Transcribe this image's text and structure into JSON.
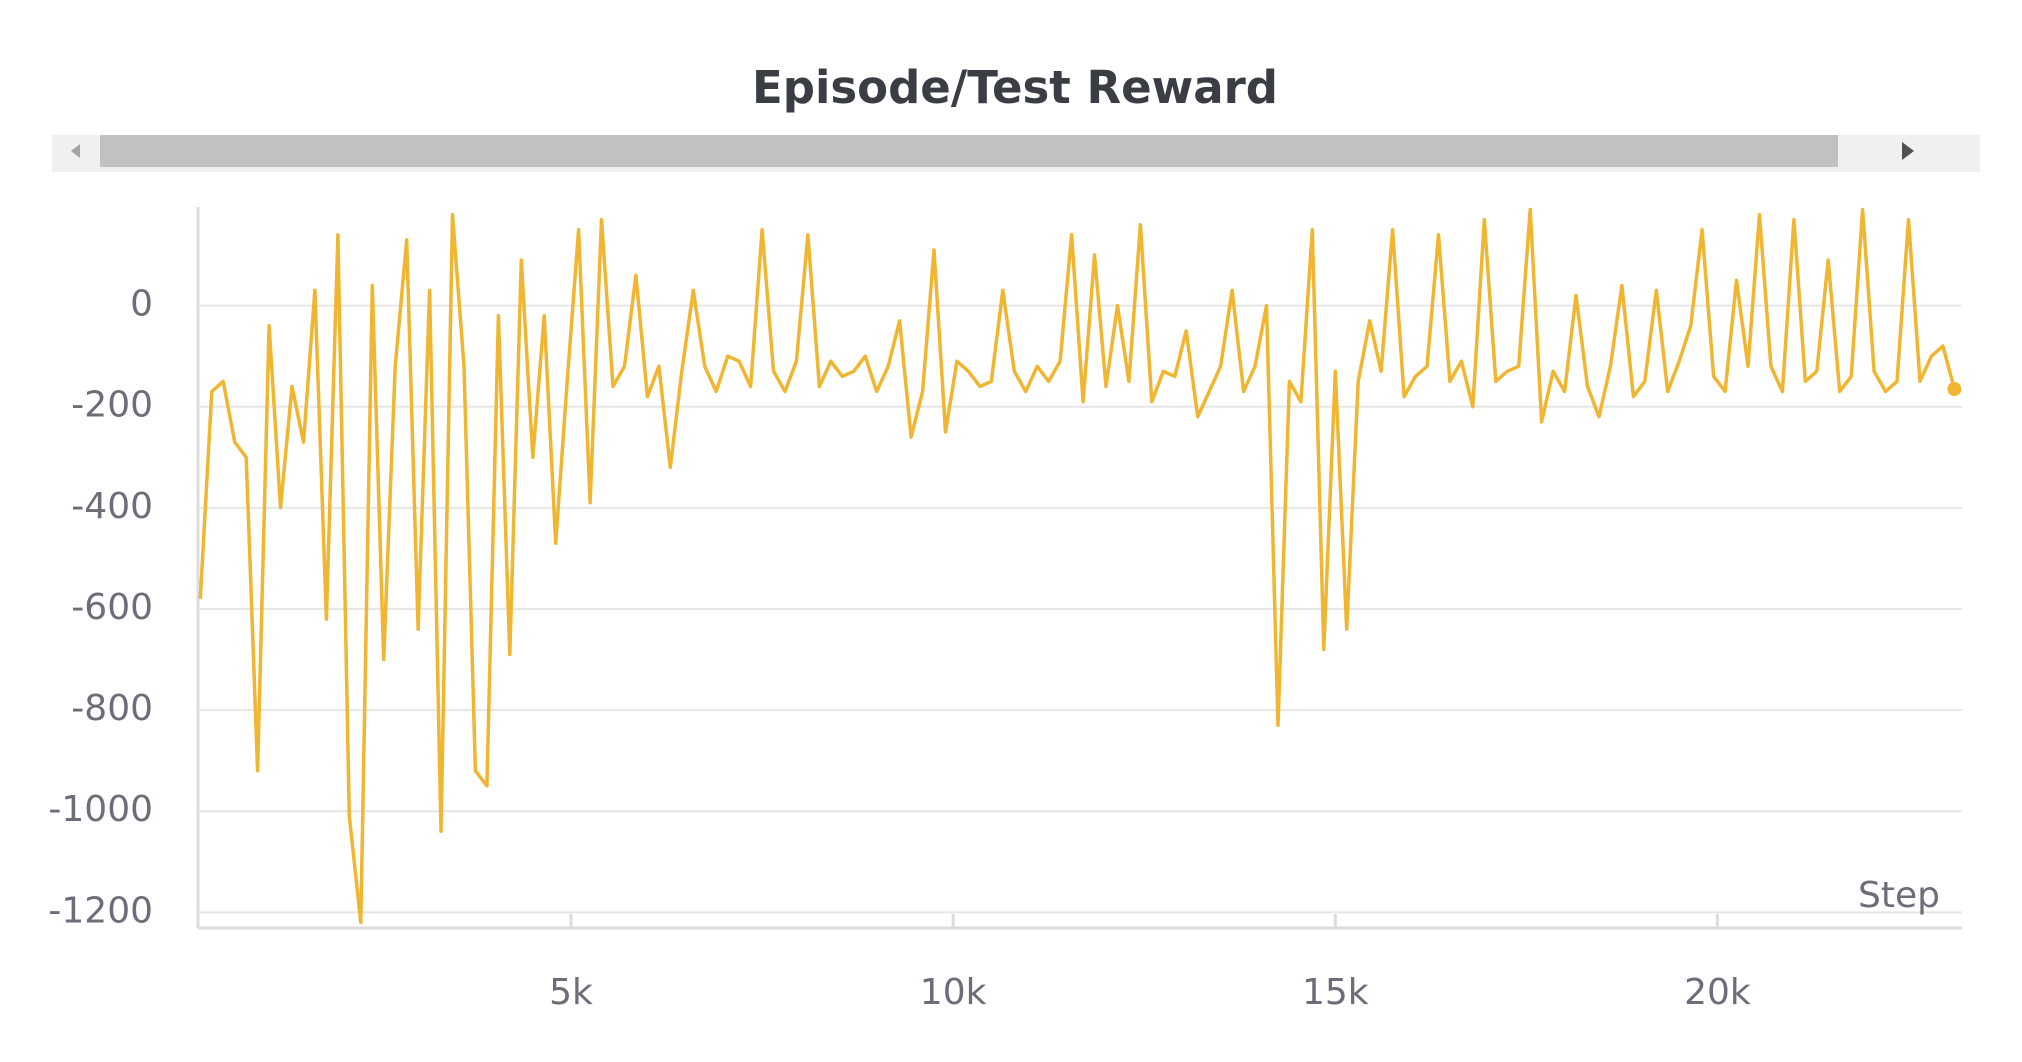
{
  "chart_data": {
    "type": "line",
    "title": "Episode/Test Reward",
    "x_label": "Step",
    "xlim": [
      120,
      23200
    ],
    "ylim": [
      -1231,
      195
    ],
    "xticks": [
      {
        "value": 5000,
        "label": "5k"
      },
      {
        "value": 10000,
        "label": "10k"
      },
      {
        "value": 15000,
        "label": "15k"
      },
      {
        "value": 20000,
        "label": "20k"
      }
    ],
    "yticks": [
      0,
      -200,
      -400,
      -600,
      -800,
      -1000,
      -1200
    ],
    "grid": true,
    "x": [
      150,
      300,
      450,
      600,
      750,
      900,
      1050,
      1200,
      1350,
      1500,
      1650,
      1800,
      1950,
      2100,
      2250,
      2400,
      2550,
      2700,
      2850,
      3000,
      3150,
      3300,
      3450,
      3600,
      3750,
      3900,
      4050,
      4200,
      4350,
      4500,
      4650,
      4800,
      4950,
      5100,
      5250,
      5400,
      5550,
      5700,
      5850,
      6000,
      6150,
      6300,
      6450,
      6600,
      6750,
      6900,
      7050,
      7200,
      7350,
      7500,
      7650,
      7800,
      7950,
      8100,
      8250,
      8400,
      8550,
      8700,
      8850,
      9000,
      9150,
      9300,
      9450,
      9600,
      9750,
      9900,
      10050,
      10200,
      10350,
      10500,
      10650,
      10800,
      10950,
      11100,
      11250,
      11400,
      11550,
      11700,
      11850,
      12000,
      12150,
      12300,
      12450,
      12600,
      12750,
      12900,
      13050,
      13200,
      13350,
      13500,
      13650,
      13800,
      13950,
      14100,
      14250,
      14400,
      14550,
      14700,
      14850,
      15000,
      15150,
      15300,
      15450,
      15600,
      15750,
      15900,
      16050,
      16200,
      16350,
      16500,
      16650,
      16800,
      16950,
      17100,
      17250,
      17400,
      17550,
      17700,
      17850,
      18000,
      18150,
      18300,
      18450,
      18600,
      18750,
      18900,
      19050,
      19200,
      19350,
      19500,
      19650,
      19800,
      19950,
      20100,
      20250,
      20400,
      20550,
      20700,
      20850,
      21000,
      21150,
      21300,
      21450,
      21600,
      21750,
      21900,
      22050,
      22200,
      22350,
      22500,
      22650,
      22800,
      22950,
      23100
    ],
    "series": [
      {
        "name": "Episode/Test Reward",
        "color": "#f0b632",
        "values": [
          -580,
          -170,
          -150,
          -270,
          -300,
          -920,
          -40,
          -400,
          -160,
          -270,
          30,
          -620,
          140,
          -1010,
          -1220,
          40,
          -700,
          -120,
          130,
          -640,
          30,
          -1040,
          180,
          -120,
          -920,
          -950,
          -20,
          -690,
          90,
          -300,
          -20,
          -470,
          -150,
          150,
          -390,
          170,
          -160,
          -120,
          60,
          -180,
          -120,
          -320,
          -130,
          30,
          -120,
          -170,
          -100,
          -110,
          -160,
          150,
          -130,
          -170,
          -110,
          140,
          -160,
          -110,
          -140,
          -130,
          -100,
          -170,
          -120,
          -30,
          -260,
          -170,
          110,
          -250,
          -110,
          -130,
          -160,
          -150,
          30,
          -130,
          -170,
          -120,
          -150,
          -110,
          140,
          -190,
          100,
          -160,
          0,
          -150,
          160,
          -190,
          -130,
          -140,
          -50,
          -220,
          -170,
          -120,
          30,
          -170,
          -120,
          0,
          -830,
          -150,
          -190,
          150,
          -680,
          -130,
          -640,
          -150,
          -30,
          -130,
          150,
          -180,
          -140,
          -120,
          140,
          -150,
          -110,
          -200,
          170,
          -150,
          -130,
          -120,
          190,
          -230,
          -130,
          -170,
          20,
          -160,
          -220,
          -120,
          40,
          -180,
          -150,
          30,
          -170,
          -110,
          -40,
          150,
          -140,
          -170,
          50,
          -120,
          180,
          -120,
          -170,
          170,
          -150,
          -130,
          90,
          -170,
          -140,
          190,
          -130,
          -170,
          -150,
          170,
          -150,
          -100,
          -80,
          -165
        ]
      }
    ]
  }
}
